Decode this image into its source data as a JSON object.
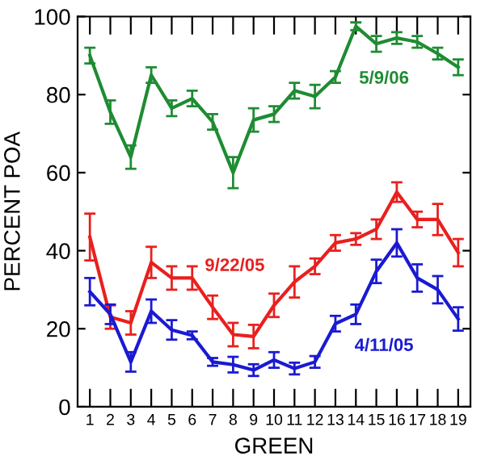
{
  "chart_data": {
    "type": "line",
    "xlabel": "GREEN",
    "ylabel": "PERCENT POA",
    "categories": [
      "1",
      "2",
      "3",
      "4",
      "5",
      "6",
      "7",
      "8",
      "9",
      "10",
      "11",
      "12",
      "13",
      "14",
      "15",
      "16",
      "17",
      "18",
      "19"
    ],
    "ylim": [
      0,
      100
    ],
    "yticks": [
      0,
      20,
      40,
      60,
      80,
      100
    ],
    "grid": false,
    "legend": false,
    "marker": "none",
    "line_style": "solid",
    "series": [
      {
        "name": "5/9/06",
        "color": "#1e8c32",
        "values": [
          90,
          75.5,
          64,
          85,
          76.5,
          79,
          73,
          60,
          73.5,
          75,
          81,
          79.5,
          84.5,
          97.5,
          93,
          94.5,
          93.5,
          90.5,
          87
        ],
        "errors": [
          2,
          3,
          3,
          2,
          2,
          2,
          2,
          4,
          3,
          2,
          2,
          3,
          1.5,
          1,
          2,
          1.5,
          1.5,
          1.5,
          2
        ]
      },
      {
        "name": "9/22/05",
        "color": "#e8201e",
        "values": [
          43.5,
          23,
          21.5,
          37,
          33,
          33,
          25.5,
          18.5,
          18,
          26,
          32,
          36,
          42,
          43,
          45.5,
          55,
          48,
          48,
          39.5
        ],
        "errors": [
          6,
          3,
          3,
          4,
          3,
          3,
          3,
          3,
          3,
          3,
          4,
          2,
          2,
          1.5,
          2.5,
          2.5,
          2,
          4,
          3.5
        ]
      },
      {
        "name": "4/11/05",
        "color": "#1a1ad2",
        "values": [
          29.5,
          23.7,
          11.5,
          24.5,
          19.7,
          18.3,
          11.5,
          10.8,
          9.4,
          12,
          9.8,
          11.5,
          21.3,
          23.7,
          34.7,
          42,
          33,
          30,
          22.5
        ],
        "errors": [
          3.5,
          2.5,
          2.5,
          3,
          2.5,
          1,
          1,
          2,
          1.5,
          2,
          1.5,
          1.5,
          2,
          2.5,
          3,
          3.5,
          3.5,
          3.5,
          3
        ]
      }
    ]
  }
}
